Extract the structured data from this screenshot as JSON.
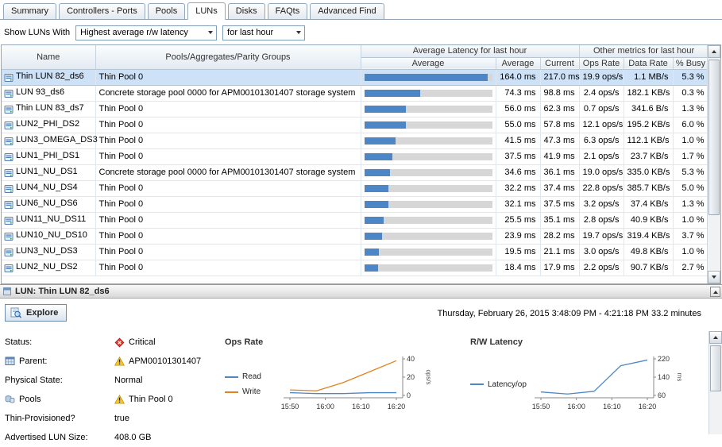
{
  "tabs": [
    {
      "label": "Summary",
      "active": false
    },
    {
      "label": "Controllers - Ports",
      "active": false
    },
    {
      "label": "Pools",
      "active": false
    },
    {
      "label": "LUNs",
      "active": true
    },
    {
      "label": "Disks",
      "active": false
    },
    {
      "label": "FAQts",
      "active": false
    },
    {
      "label": "Advanced Find",
      "active": false
    }
  ],
  "filter": {
    "label": "Show LUNs With",
    "metric_value": "Highest average r/w latency",
    "period_value": "for last hour"
  },
  "table": {
    "group_headers": {
      "latency": "Average Latency for last hour",
      "other": "Other metrics for last hour"
    },
    "columns": {
      "name": "Name",
      "pools": "Pools/Aggregates/Parity Groups",
      "bar": "Average",
      "average": "Average",
      "current": "Current",
      "ops_rate": "Ops Rate",
      "data_rate": "Data Rate",
      "busy": "% Busy"
    },
    "bar_max_ms": 170,
    "rows": [
      {
        "name": "Thin LUN 82_ds6",
        "pool": "Thin Pool 0",
        "average": "164.0 ms",
        "current": "217.0 ms",
        "ops_rate": "19.9 ops/s",
        "data_rate": "1.1 MB/s",
        "busy": "5.3 %",
        "selected": true
      },
      {
        "name": "LUN 93_ds6",
        "pool": "Concrete storage pool 0000 for APM00101301407 storage system",
        "average": "74.3 ms",
        "current": "98.8 ms",
        "ops_rate": "2.4 ops/s",
        "data_rate": "182.1 KB/s",
        "busy": "0.3 %",
        "selected": false
      },
      {
        "name": "Thin LUN 83_ds7",
        "pool": "Thin Pool 0",
        "average": "56.0 ms",
        "current": "62.3 ms",
        "ops_rate": "0.7 ops/s",
        "data_rate": "341.6 B/s",
        "busy": "1.3 %",
        "selected": false
      },
      {
        "name": "LUN2_PHI_DS2",
        "pool": "Thin Pool 0",
        "average": "55.0 ms",
        "current": "57.8 ms",
        "ops_rate": "12.1 ops/s",
        "data_rate": "195.2 KB/s",
        "busy": "6.0 %",
        "selected": false
      },
      {
        "name": "LUN3_OMEGA_DS3",
        "pool": "Thin Pool 0",
        "average": "41.5 ms",
        "current": "47.3 ms",
        "ops_rate": "6.3 ops/s",
        "data_rate": "112.1 KB/s",
        "busy": "1.0 %",
        "selected": false
      },
      {
        "name": "LUN1_PHI_DS1",
        "pool": "Thin Pool 0",
        "average": "37.5 ms",
        "current": "41.9 ms",
        "ops_rate": "2.1 ops/s",
        "data_rate": "23.7 KB/s",
        "busy": "1.7 %",
        "selected": false
      },
      {
        "name": "LUN1_NU_DS1",
        "pool": "Concrete storage pool 0000 for APM00101301407 storage system",
        "average": "34.6 ms",
        "current": "36.1 ms",
        "ops_rate": "19.0 ops/s",
        "data_rate": "335.0 KB/s",
        "busy": "5.3 %",
        "selected": false
      },
      {
        "name": "LUN4_NU_DS4",
        "pool": "Thin Pool 0",
        "average": "32.2 ms",
        "current": "37.4 ms",
        "ops_rate": "22.8 ops/s",
        "data_rate": "385.7 KB/s",
        "busy": "5.0 %",
        "selected": false
      },
      {
        "name": "LUN6_NU_DS6",
        "pool": "Thin Pool 0",
        "average": "32.1 ms",
        "current": "37.5 ms",
        "ops_rate": "3.2 ops/s",
        "data_rate": "37.4 KB/s",
        "busy": "1.3 %",
        "selected": false
      },
      {
        "name": "LUN11_NU_DS11",
        "pool": "Thin Pool 0",
        "average": "25.5 ms",
        "current": "35.1 ms",
        "ops_rate": "2.8 ops/s",
        "data_rate": "40.9 KB/s",
        "busy": "1.0 %",
        "selected": false
      },
      {
        "name": "LUN10_NU_DS10",
        "pool": "Thin Pool 0",
        "average": "23.9 ms",
        "current": "28.2 ms",
        "ops_rate": "19.7 ops/s",
        "data_rate": "319.4 KB/s",
        "busy": "3.7 %",
        "selected": false
      },
      {
        "name": "LUN3_NU_DS3",
        "pool": "Thin Pool 0",
        "average": "19.5 ms",
        "current": "21.1 ms",
        "ops_rate": "3.0 ops/s",
        "data_rate": "49.8 KB/s",
        "busy": "1.0 %",
        "selected": false
      },
      {
        "name": "LUN2_NU_DS2",
        "pool": "Thin Pool 0",
        "average": "18.4 ms",
        "current": "17.9 ms",
        "ops_rate": "2.2 ops/s",
        "data_rate": "90.7 KB/s",
        "busy": "2.7 %",
        "selected": false
      }
    ]
  },
  "detail": {
    "title": "LUN: Thin LUN 82_ds6",
    "explore_label": "Explore",
    "time_range": "Thursday, February 26, 2015  3:48:09 PM - 4:21:18 PM  33.2 minutes",
    "fields": [
      {
        "label": "Status:",
        "label_icon": null,
        "value": "Critical",
        "value_icon": "critical"
      },
      {
        "label": "Parent:",
        "label_icon": "parent",
        "value": "APM00101301407",
        "value_icon": "warning"
      },
      {
        "label": "Physical State:",
        "label_icon": null,
        "value": "Normal",
        "value_icon": null
      },
      {
        "label": "Pools",
        "label_icon": "pools",
        "value": "Thin Pool 0",
        "value_icon": "warning"
      },
      {
        "label": "Thin-Provisioned?",
        "label_icon": null,
        "value": "true",
        "value_icon": null
      },
      {
        "label": "Advertised LUN Size:",
        "label_icon": null,
        "value": "408.0 GB",
        "value_icon": null
      }
    ]
  },
  "colors": {
    "selection": "#cde1f7",
    "bar_fill": "#4c86c6",
    "read_line": "#4e88c4",
    "write_line": "#e2821f",
    "critical": "#e23b2e",
    "warning": "#f9c724"
  },
  "chart_data": [
    {
      "type": "line",
      "title": "Ops Rate",
      "x_labels": [
        "15:50",
        "16:00",
        "16:10",
        "16:20"
      ],
      "ylabel": "ops/s",
      "ylim": [
        0,
        40
      ],
      "yticks": [
        0,
        20,
        40
      ],
      "legend_position": "left",
      "grid": false,
      "series": [
        {
          "name": "Read",
          "color": "#4e88c4",
          "values": [
            3,
            2,
            2,
            3,
            3
          ]
        },
        {
          "name": "Write",
          "color": "#e2821f",
          "values": [
            6,
            5,
            14,
            26,
            38
          ]
        }
      ]
    },
    {
      "type": "line",
      "title": "R/W Latency",
      "x_labels": [
        "15:50",
        "16:00",
        "16:10",
        "16:20"
      ],
      "ylabel": "ms",
      "ylim": [
        60,
        220
      ],
      "yticks": [
        60,
        140,
        220
      ],
      "legend_position": "left",
      "grid": false,
      "series": [
        {
          "name": "Latency/op",
          "color": "#4e88c4",
          "values": [
            75,
            66,
            78,
            190,
            215
          ]
        }
      ]
    }
  ]
}
